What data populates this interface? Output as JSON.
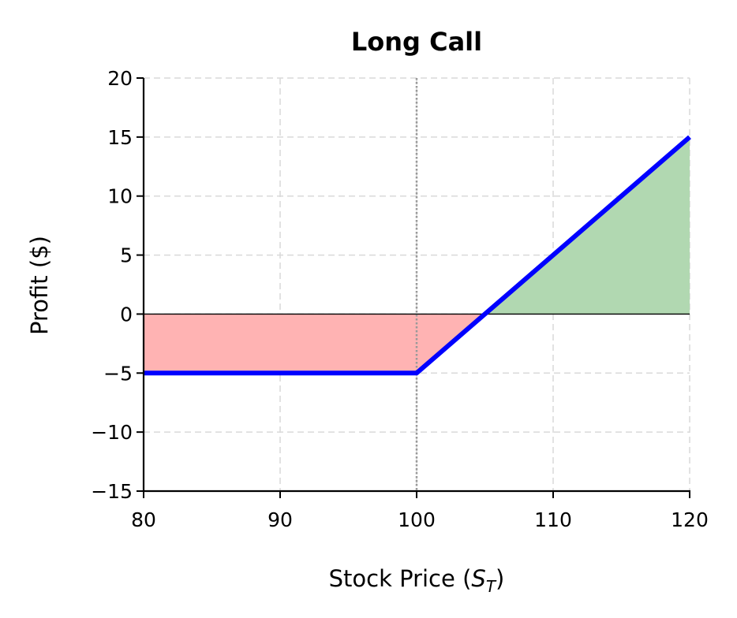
{
  "chart_data": {
    "type": "line",
    "title": "Long Call",
    "xlabel": "Stock Price (S_T)",
    "xlabel_main": "Stock Price (",
    "xlabel_var": "S",
    "xlabel_sub": "T",
    "xlabel_close": ")",
    "ylabel": "Profit ($)",
    "xlim": [
      80,
      120
    ],
    "ylim": [
      -15,
      20
    ],
    "xticks": [
      80,
      90,
      100,
      110,
      120
    ],
    "yticks": [
      -15,
      -10,
      -5,
      0,
      5,
      10,
      15,
      20
    ],
    "xtick_labels": [
      "80",
      "90",
      "100",
      "110",
      "120"
    ],
    "ytick_labels": [
      "−15",
      "−10",
      "−5",
      "0",
      "5",
      "10",
      "15",
      "20"
    ],
    "grid": true,
    "strike_marker_x": 100,
    "series": [
      {
        "x": [
          80,
          100,
          120
        ],
        "y": [
          -5,
          -5,
          15
        ],
        "color": "#0000ff"
      }
    ],
    "fills": {
      "loss_color": "#ffb3b3",
      "profit_color": "#b1d8b1"
    },
    "zero_line": 0
  }
}
